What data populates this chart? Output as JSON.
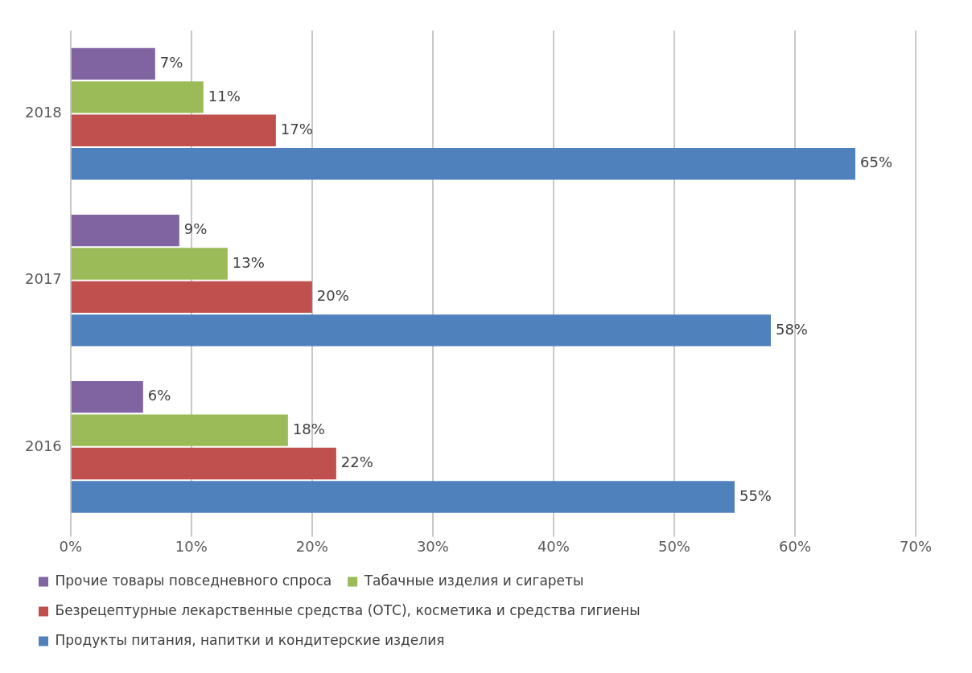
{
  "chart_data": {
    "type": "bar",
    "orientation": "horizontal",
    "categories": [
      "2018",
      "2017",
      "2016"
    ],
    "series": [
      {
        "name": "Прочие товары повседневного спроса",
        "color": "#8064a2",
        "values": [
          7,
          9,
          6
        ],
        "value_labels": [
          "7%",
          "9%",
          "6%"
        ]
      },
      {
        "name": "Табачные изделия и сигареты",
        "color": "#9bbb59",
        "values": [
          11,
          13,
          18
        ],
        "value_labels": [
          "11%",
          "13%",
          "18%"
        ]
      },
      {
        "name": "Безрецептурные лекарственные средства (ОТС), косметика и средства гигиены",
        "color": "#c0504d",
        "values": [
          17,
          20,
          22
        ],
        "value_labels": [
          "17%",
          "20%",
          "22%"
        ]
      },
      {
        "name": "Продукты питания, напитки и кондитерские изделия",
        "color": "#4f81bd",
        "values": [
          65,
          58,
          55
        ],
        "value_labels": [
          "65%",
          "58%",
          "55%"
        ]
      }
    ],
    "xlim": [
      0,
      70
    ],
    "xticks": [
      {
        "value": 0,
        "label": "0%"
      },
      {
        "value": 10,
        "label": "10%"
      },
      {
        "value": 20,
        "label": "20%"
      },
      {
        "value": 30,
        "label": "30%"
      },
      {
        "value": 40,
        "label": "40%"
      },
      {
        "value": 50,
        "label": "50%"
      },
      {
        "value": 60,
        "label": "60%"
      },
      {
        "value": 70,
        "label": "70%"
      }
    ],
    "grid": "x",
    "legend": "bottom"
  }
}
